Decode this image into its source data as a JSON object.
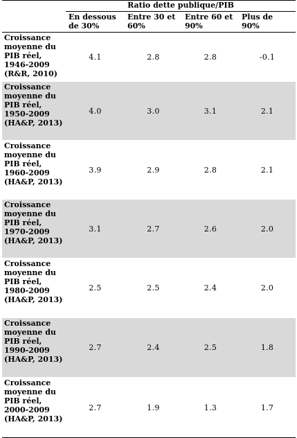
{
  "table": {
    "super_header": "Ratio dette publique/PIB",
    "columns": [
      "En dessous de 30%",
      "Entre 30 et 60%",
      "Entre 60 et 90%",
      "Plus de 90%"
    ],
    "rows": [
      {
        "label": "Croissance moyenne du PIB réel, 1946-2009 (R&R, 2010)",
        "values": [
          "4.1",
          "2.8",
          "2.8",
          "-0.1"
        ],
        "shaded": false
      },
      {
        "label": "Croissance moyenne du PIB réel, 1950-2009 (HA&P, 2013)",
        "values": [
          "4.0",
          "3.0",
          "3.1",
          "2.1"
        ],
        "shaded": true
      },
      {
        "label": "Croissance moyenne du PIB réel, 1960-2009 (HA&P, 2013)",
        "values": [
          "3.9",
          "2.9",
          "2.8",
          "2.1"
        ],
        "shaded": false
      },
      {
        "label": "Croissance moyenne du PIB réel, 1970-2009 (HA&P, 2013)",
        "values": [
          "3.1",
          "2.7",
          "2.6",
          "2.0"
        ],
        "shaded": true
      },
      {
        "label": "Croissance moyenne du PIB réel, 1980-2009 (HA&P, 2013)",
        "values": [
          "2.5",
          "2.5",
          "2.4",
          "2.0"
        ],
        "shaded": false
      },
      {
        "label": "Croissance moyenne du PIB réel, 1990-2009 (HA&P, 2013)",
        "values": [
          "2.7",
          "2.4",
          "2.5",
          "1.8"
        ],
        "shaded": true
      },
      {
        "label": "Croissance moyenne du PIB réel, 2000-2009 (HA&P, 2013)",
        "values": [
          "2.7",
          "1.9",
          "1.3",
          "1.7"
        ],
        "shaded": false
      }
    ]
  },
  "colors": {
    "shade": "#d9d9d9",
    "rule": "#000000"
  }
}
